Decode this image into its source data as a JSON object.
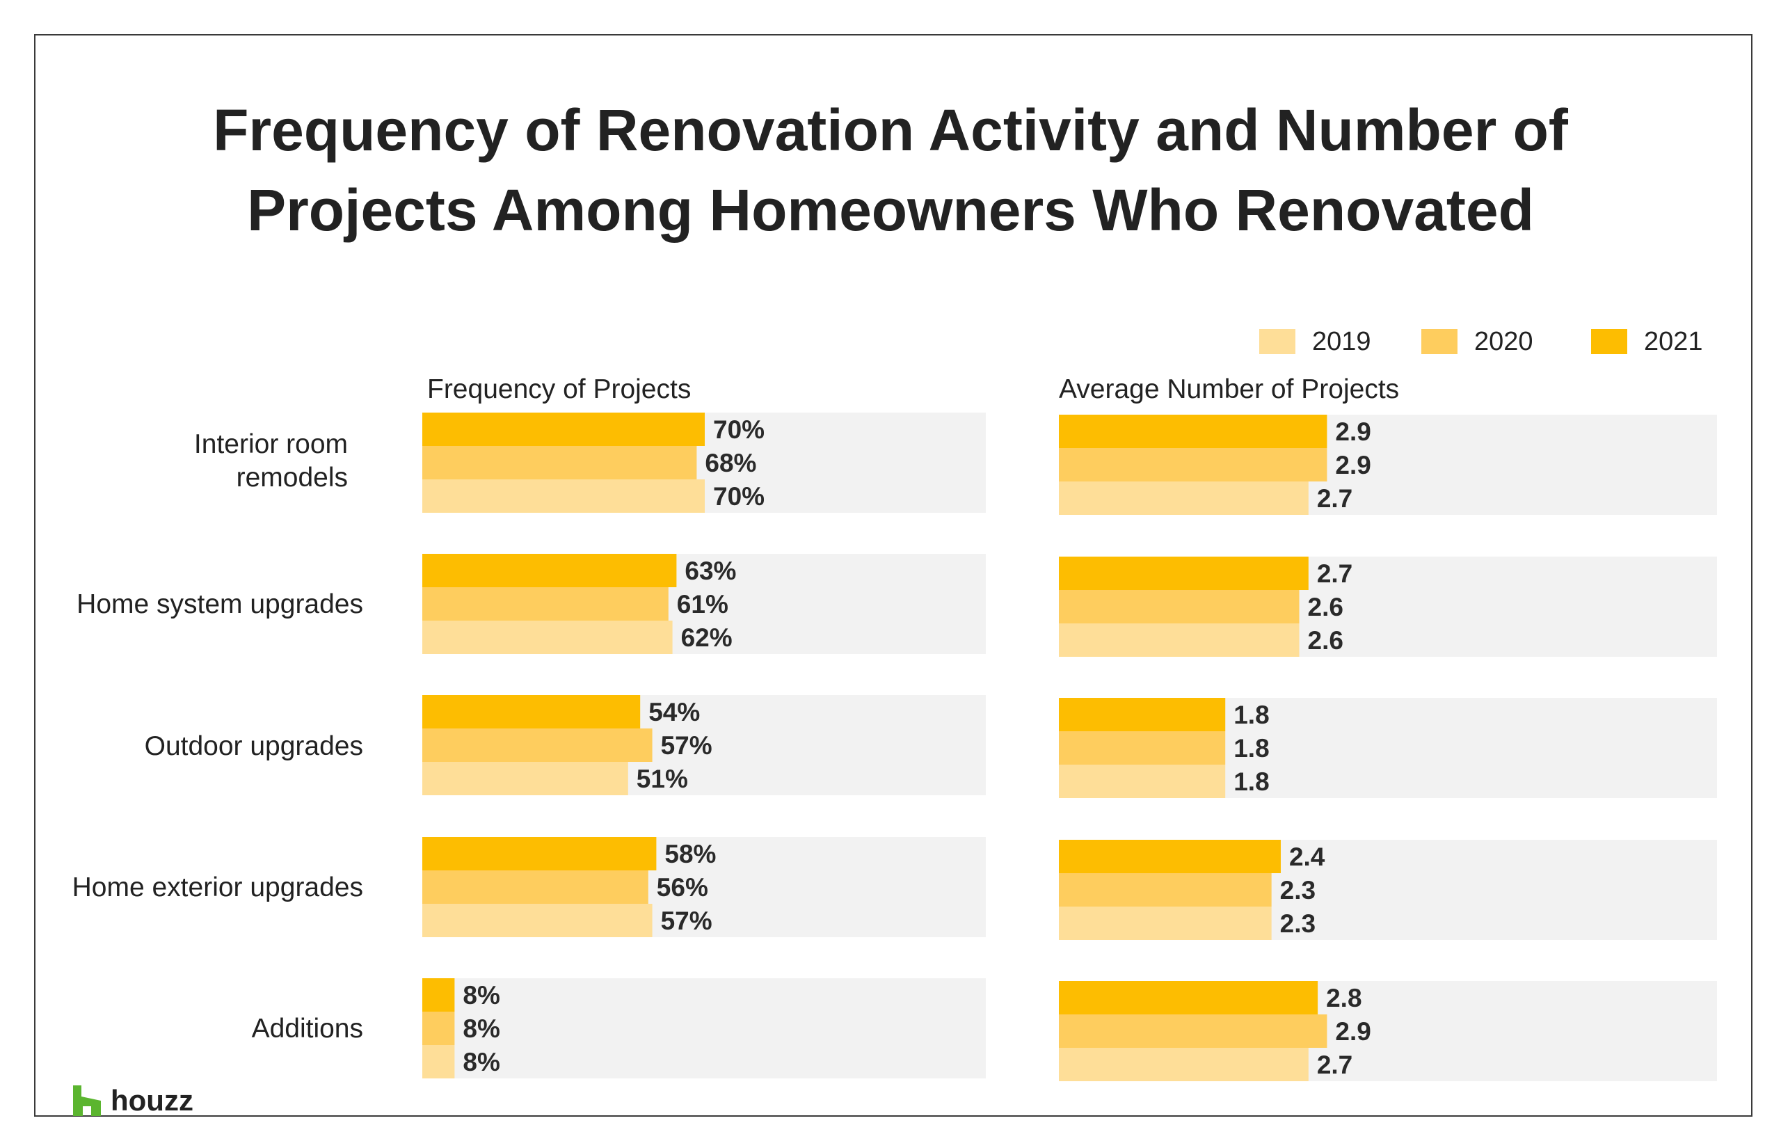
{
  "chart_data": [
    {
      "type": "bar",
      "orientation": "horizontal",
      "title": "Frequency of Renovation Activity and Number of Projects Among Homeowners Who Renovated",
      "subtitle": "Frequency of Projects",
      "categories": [
        "Interior room remodels",
        "Home system upgrades",
        "Outdoor upgrades",
        "Home exterior upgrades",
        "Additions"
      ],
      "series": [
        {
          "name": "2021",
          "values": [
            70,
            63,
            54,
            58,
            8
          ],
          "labels": [
            "70%",
            "63%",
            "54%",
            "58%",
            "8%"
          ]
        },
        {
          "name": "2020",
          "values": [
            68,
            61,
            57,
            56,
            8
          ],
          "labels": [
            "68%",
            "61%",
            "57%",
            "56%",
            "8%"
          ]
        },
        {
          "name": "2019",
          "values": [
            70,
            62,
            51,
            57,
            8
          ],
          "labels": [
            "70%",
            "62%",
            "51%",
            "57%",
            "8%"
          ]
        }
      ],
      "xlim": [
        0,
        140
      ],
      "legend": "top-right",
      "grid": false
    },
    {
      "type": "bar",
      "orientation": "horizontal",
      "subtitle": "Average Number of Projects",
      "categories": [
        "Interior room remodels",
        "Home system upgrades",
        "Outdoor upgrades",
        "Home exterior upgrades",
        "Additions"
      ],
      "series": [
        {
          "name": "2021",
          "values": [
            2.9,
            2.7,
            1.8,
            2.4,
            2.8
          ],
          "labels": [
            "2.9",
            "2.7",
            "1.8",
            "2.4",
            "2.8"
          ]
        },
        {
          "name": "2020",
          "values": [
            2.9,
            2.6,
            1.8,
            2.3,
            2.9
          ],
          "labels": [
            "2.9",
            "2.6",
            "1.8",
            "2.3",
            "2.9"
          ]
        },
        {
          "name": "2019",
          "values": [
            2.7,
            2.6,
            1.8,
            2.3,
            2.7
          ],
          "labels": [
            "2.7",
            "2.6",
            "1.8",
            "2.3",
            "2.7"
          ]
        }
      ],
      "xlim": [
        0,
        7.1
      ],
      "legend": "top-right",
      "grid": false
    }
  ],
  "title_lines": [
    "Frequency of Renovation Activity and Number of",
    "Projects Among Homeowners Who Renovated"
  ],
  "legend": [
    {
      "label": "2019",
      "color": "#fede98"
    },
    {
      "label": "2020",
      "color": "#fecd5e"
    },
    {
      "label": "2021",
      "color": "#fdbd01"
    }
  ],
  "category_labels": [
    [
      "Interior room",
      "remodels"
    ],
    [
      "Home system upgrades"
    ],
    [
      "Outdoor upgrades"
    ],
    [
      "Home exterior upgrades"
    ],
    [
      "Additions"
    ]
  ],
  "colors": {
    "2021": "#fdbd01",
    "2020": "#fecd5e",
    "2019": "#fede98",
    "panel_bg": "#f2f2f2",
    "logo_green": "#5bb52f"
  },
  "logo": {
    "icon": "houzz-logo-icon",
    "text": "houzz"
  }
}
